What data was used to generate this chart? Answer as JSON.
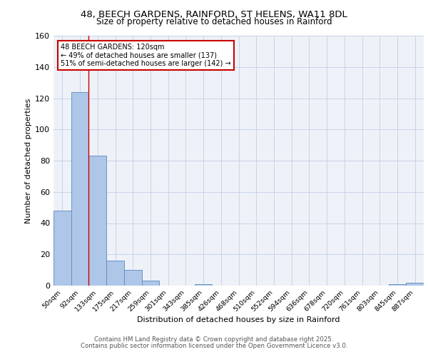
{
  "title_line1": "48, BEECH GARDENS, RAINFORD, ST HELENS, WA11 8DL",
  "title_line2": "Size of property relative to detached houses in Rainford",
  "xlabel": "Distribution of detached houses by size in Rainford",
  "ylabel": "Number of detached properties",
  "bar_labels": [
    "50sqm",
    "92sqm",
    "133sqm",
    "175sqm",
    "217sqm",
    "259sqm",
    "301sqm",
    "343sqm",
    "385sqm",
    "426sqm",
    "468sqm",
    "510sqm",
    "552sqm",
    "594sqm",
    "636sqm",
    "678sqm",
    "720sqm",
    "761sqm",
    "803sqm",
    "845sqm",
    "887sqm"
  ],
  "bar_values": [
    48,
    124,
    83,
    16,
    10,
    3,
    0,
    0,
    1,
    0,
    0,
    0,
    0,
    0,
    0,
    0,
    0,
    0,
    0,
    1,
    2
  ],
  "bar_color": "#aec6e8",
  "bar_edge_color": "#5a8abf",
  "annotation_title": "48 BEECH GARDENS: 120sqm",
  "annotation_line2": "← 49% of detached houses are smaller (137)",
  "annotation_line3": "51% of semi-detached houses are larger (142) →",
  "annotation_box_facecolor": "#ffffff",
  "annotation_box_edge": "#cc0000",
  "red_line_color": "#cc0000",
  "ylim": [
    0,
    160
  ],
  "yticks": [
    0,
    20,
    40,
    60,
    80,
    100,
    120,
    140,
    160
  ],
  "grid_color": "#c8d4e8",
  "background_color": "#eef2f8",
  "footer_line1": "Contains HM Land Registry data © Crown copyright and database right 2025.",
  "footer_line2": "Contains public sector information licensed under the Open Government Licence v3.0."
}
